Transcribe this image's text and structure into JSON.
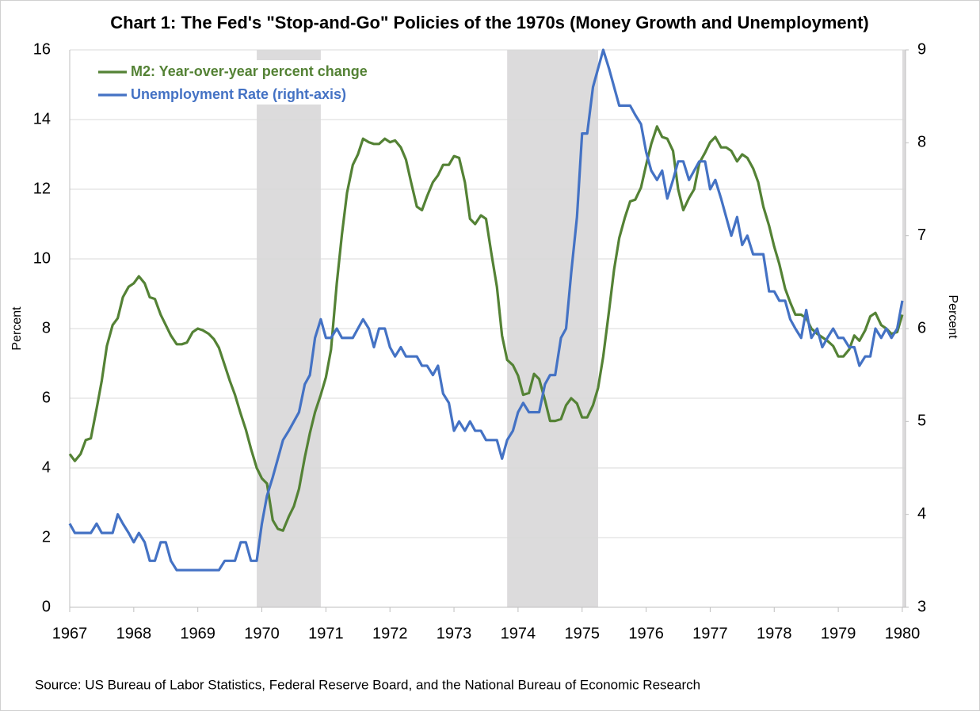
{
  "chart_data": {
    "type": "line",
    "title": "Chart 1: The Fed's \"Stop-and-Go\" Policies of the 1970s (Money Growth and Unemployment)",
    "ylabel": "Percent",
    "y2label": "Percent",
    "source": "Source: US Bureau of Labor Statistics, Federal Reserve Board, and the National Bureau of Economic Research",
    "xlim": [
      1967,
      1980.05
    ],
    "xticks": [
      1967,
      1968,
      1969,
      1970,
      1971,
      1972,
      1973,
      1974,
      1975,
      1976,
      1977,
      1978,
      1979,
      1980
    ],
    "ylim": [
      0,
      16
    ],
    "yticks": [
      0,
      2,
      4,
      6,
      8,
      10,
      12,
      14,
      16
    ],
    "y2lim": [
      3,
      9
    ],
    "y2ticks": [
      3,
      4,
      5,
      6,
      7,
      8,
      9
    ],
    "grid": true,
    "legend": "upper left",
    "recessions": [
      [
        1969.92,
        1970.92
      ],
      [
        1973.83,
        1975.25
      ],
      [
        1980,
        1980.05
      ]
    ],
    "recession_color": "#dcdbdc",
    "x": [
      1967,
      1967.08,
      1967.17,
      1967.25,
      1967.33,
      1967.42,
      1967.5,
      1967.58,
      1967.67,
      1967.75,
      1967.83,
      1967.92,
      1968,
      1968.08,
      1968.17,
      1968.25,
      1968.33,
      1968.42,
      1968.5,
      1968.58,
      1968.67,
      1968.75,
      1968.83,
      1968.92,
      1969,
      1969.08,
      1969.17,
      1969.25,
      1969.33,
      1969.42,
      1969.5,
      1969.58,
      1969.67,
      1969.75,
      1969.83,
      1969.92,
      1970,
      1970.08,
      1970.17,
      1970.25,
      1970.33,
      1970.42,
      1970.5,
      1970.58,
      1970.67,
      1970.75,
      1970.83,
      1970.92,
      1971,
      1971.08,
      1971.17,
      1971.25,
      1971.33,
      1971.42,
      1971.5,
      1971.58,
      1971.67,
      1971.75,
      1971.83,
      1971.92,
      1972,
      1972.08,
      1972.17,
      1972.25,
      1972.33,
      1972.42,
      1972.5,
      1972.58,
      1972.67,
      1972.75,
      1972.83,
      1972.92,
      1973,
      1973.08,
      1973.17,
      1973.25,
      1973.33,
      1973.42,
      1973.5,
      1973.58,
      1973.67,
      1973.75,
      1973.83,
      1973.92,
      1974,
      1974.08,
      1974.17,
      1974.25,
      1974.33,
      1974.42,
      1974.5,
      1974.58,
      1974.67,
      1974.75,
      1974.83,
      1974.92,
      1975,
      1975.08,
      1975.17,
      1975.25,
      1975.33,
      1975.42,
      1975.5,
      1975.58,
      1975.67,
      1975.75,
      1975.83,
      1975.92,
      1976,
      1976.08,
      1976.17,
      1976.25,
      1976.33,
      1976.42,
      1976.5,
      1976.58,
      1976.67,
      1976.75,
      1976.83,
      1976.92,
      1977,
      1977.08,
      1977.17,
      1977.25,
      1977.33,
      1977.42,
      1977.5,
      1977.58,
      1977.67,
      1977.75,
      1977.83,
      1977.92,
      1978,
      1978.08,
      1978.17,
      1978.25,
      1978.33,
      1978.42,
      1978.5,
      1978.58,
      1978.67,
      1978.75,
      1978.83,
      1978.92,
      1979,
      1979.08,
      1979.17,
      1979.25,
      1979.33,
      1979.42,
      1979.5,
      1979.58,
      1979.67,
      1979.75,
      1979.83,
      1979.92,
      1980
    ],
    "series": [
      {
        "name": "M2: Year-over-year percent change",
        "color": "#548235",
        "axis": "y",
        "values": [
          4.4,
          4.2,
          4.4,
          4.8,
          4.85,
          5.7,
          6.5,
          7.5,
          8.1,
          8.3,
          8.9,
          9.2,
          9.3,
          9.5,
          9.3,
          8.9,
          8.85,
          8.4,
          8.1,
          7.8,
          7.55,
          7.55,
          7.6,
          7.9,
          8.0,
          7.95,
          7.85,
          7.7,
          7.45,
          6.95,
          6.5,
          6.1,
          5.55,
          5.1,
          4.55,
          4.0,
          3.7,
          3.55,
          2.5,
          2.25,
          2.2,
          2.6,
          2.9,
          3.4,
          4.3,
          5.0,
          5.6,
          6.1,
          6.6,
          7.4,
          9.3,
          10.7,
          11.9,
          12.7,
          13.0,
          13.45,
          13.35,
          13.3,
          13.3,
          13.45,
          13.35,
          13.4,
          13.2,
          12.85,
          12.2,
          11.5,
          11.4,
          11.8,
          12.2,
          12.4,
          12.7,
          12.7,
          12.95,
          12.9,
          12.2,
          11.15,
          11.0,
          11.25,
          11.15,
          10.2,
          9.2,
          7.8,
          7.1,
          6.95,
          6.65,
          6.1,
          6.15,
          6.7,
          6.55,
          5.95,
          5.35,
          5.35,
          5.4,
          5.8,
          6.0,
          5.85,
          5.45,
          5.45,
          5.8,
          6.3,
          7.2,
          8.5,
          9.7,
          10.6,
          11.2,
          11.65,
          11.7,
          12.05,
          12.7,
          13.3,
          13.8,
          13.5,
          13.45,
          13.1,
          12.0,
          11.4,
          11.75,
          12.0,
          12.75,
          13.05,
          13.35,
          13.5,
          13.2,
          13.2,
          13.1,
          12.8,
          13.0,
          12.9,
          12.6,
          12.2,
          11.5,
          10.95,
          10.35,
          9.85,
          9.15,
          8.75,
          8.4,
          8.4,
          8.3,
          8.0,
          7.85,
          7.75,
          7.65,
          7.5,
          7.2,
          7.2,
          7.4,
          7.8,
          7.65,
          7.95,
          8.35,
          8.45,
          8.1,
          8.0,
          7.85,
          7.9,
          8.4
        ]
      },
      {
        "name": "Unemployment Rate (right-axis)",
        "color": "#4472c4",
        "axis": "y2",
        "values": [
          3.9,
          3.8,
          3.8,
          3.8,
          3.8,
          3.9,
          3.8,
          3.8,
          3.8,
          4.0,
          3.9,
          3.8,
          3.7,
          3.8,
          3.7,
          3.5,
          3.5,
          3.7,
          3.7,
          3.5,
          3.4,
          3.4,
          3.4,
          3.4,
          3.4,
          3.4,
          3.4,
          3.4,
          3.4,
          3.5,
          3.5,
          3.5,
          3.7,
          3.7,
          3.5,
          3.5,
          3.9,
          4.2,
          4.4,
          4.6,
          4.8,
          4.9,
          5.0,
          5.1,
          5.4,
          5.5,
          5.9,
          6.1,
          5.9,
          5.9,
          6.0,
          5.9,
          5.9,
          5.9,
          6.0,
          6.1,
          6.0,
          5.8,
          6.0,
          6.0,
          5.8,
          5.7,
          5.8,
          5.7,
          5.7,
          5.7,
          5.6,
          5.6,
          5.5,
          5.6,
          5.3,
          5.2,
          4.9,
          5.0,
          4.9,
          5.0,
          4.9,
          4.9,
          4.8,
          4.8,
          4.8,
          4.6,
          4.8,
          4.9,
          5.1,
          5.2,
          5.1,
          5.1,
          5.1,
          5.4,
          5.5,
          5.5,
          5.9,
          6.0,
          6.6,
          7.2,
          8.1,
          8.1,
          8.6,
          8.8,
          9.0,
          8.8,
          8.6,
          8.4,
          8.4,
          8.4,
          8.3,
          8.2,
          7.9,
          7.7,
          7.6,
          7.7,
          7.4,
          7.6,
          7.8,
          7.8,
          7.6,
          7.7,
          7.8,
          7.8,
          7.5,
          7.6,
          7.4,
          7.2,
          7.0,
          7.2,
          6.9,
          7.0,
          6.8,
          6.8,
          6.8,
          6.4,
          6.4,
          6.3,
          6.3,
          6.1,
          6.0,
          5.9,
          6.2,
          5.9,
          6.0,
          5.8,
          5.9,
          6.0,
          5.9,
          5.9,
          5.8,
          5.8,
          5.6,
          5.7,
          5.7,
          6.0,
          5.9,
          6.0,
          5.9,
          6.0,
          6.3
        ]
      }
    ]
  }
}
